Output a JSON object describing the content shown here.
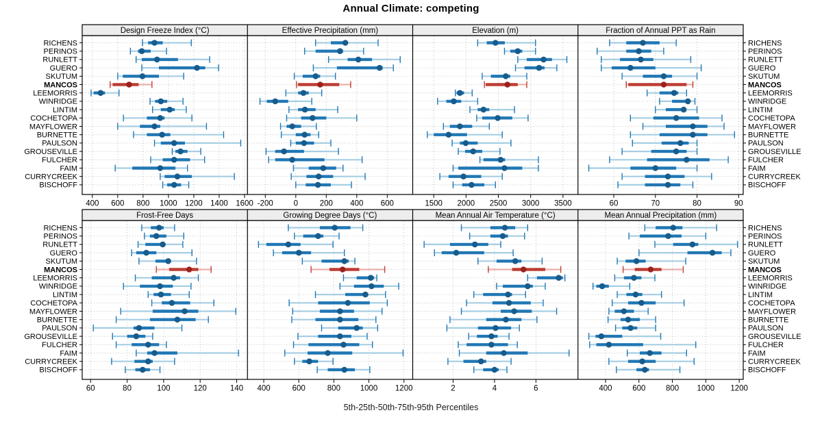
{
  "title": "Annual Climate: competing",
  "caption": "5th-25th-50th-75th-95th Percentiles",
  "stations": [
    "RICHENS",
    "PERINOS",
    "RUNLETT",
    "GUERO",
    "SKUTUM",
    "MANCOS",
    "LEEMORRIS",
    "WINRIDGE",
    "LINTIM",
    "COCHETOPA",
    "MAYFLOWER",
    "BURNETTE",
    "PAULSON",
    "GROUSEVILLE",
    "FULCHER",
    "FAIM",
    "CURRYCREEK",
    "BISCHOFF"
  ],
  "highlight_station": "MANCOS",
  "colors": {
    "blue_range": "#A6CEE3",
    "blue_main": "#2077B4",
    "blue_dot": "#175C8C",
    "red_range": "#E9AFA9",
    "red_main": "#BE3E35",
    "red_dot": "#9C221B",
    "grid": "#BFBFBF",
    "strip_bg": "#EDEDED",
    "border": "#000000"
  },
  "chart_data": {
    "type": "dotplot-percentile-panels",
    "percentiles": [
      "5th",
      "25th",
      "50th",
      "75th",
      "95th"
    ],
    "legend": "each row: 5th-95th thin range, 25th-75th thick bar, 50th dot",
    "panels": [
      {
        "title": "Design Freeze Index (°C)",
        "xlim": [
          320,
          1623
        ],
        "ticks": [
          400,
          600,
          800,
          1000,
          1200,
          1400,
          1600
        ],
        "values": [
          [
            795,
            840,
            890,
            955,
            1180
          ],
          [
            700,
            760,
            790,
            860,
            985
          ],
          [
            745,
            790,
            910,
            1075,
            1325
          ],
          [
            790,
            925,
            1225,
            1290,
            1395
          ],
          [
            600,
            640,
            795,
            925,
            1120
          ],
          [
            540,
            560,
            690,
            765,
            870
          ],
          [
            390,
            410,
            465,
            500,
            610
          ],
          [
            855,
            895,
            940,
            990,
            1115
          ],
          [
            875,
            940,
            1010,
            1050,
            1140
          ],
          [
            645,
            830,
            935,
            970,
            1185
          ],
          [
            600,
            775,
            890,
            935,
            1300
          ],
          [
            725,
            830,
            950,
            1015,
            1435
          ],
          [
            890,
            940,
            1045,
            1130,
            1570
          ],
          [
            1030,
            1055,
            1095,
            1150,
            1255
          ],
          [
            860,
            955,
            1045,
            1170,
            1285
          ],
          [
            580,
            715,
            935,
            1055,
            1150
          ],
          [
            935,
            970,
            1070,
            1185,
            1520
          ],
          [
            955,
            990,
            1045,
            1100,
            1160
          ]
        ]
      },
      {
        "title": "Effective Precipitation (mm)",
        "xlim": [
          -317,
          767
        ],
        "ticks": [
          -200,
          0,
          200,
          400,
          600
        ],
        "values": [
          [
            130,
            230,
            325,
            340,
            540
          ],
          [
            58,
            130,
            290,
            310,
            445
          ],
          [
            215,
            340,
            410,
            500,
            685
          ],
          [
            115,
            270,
            550,
            570,
            640
          ],
          [
            -10,
            45,
            130,
            160,
            260
          ],
          [
            5,
            15,
            160,
            285,
            360
          ],
          [
            -65,
            15,
            50,
            85,
            170
          ],
          [
            -235,
            -190,
            -135,
            -50,
            105
          ],
          [
            -45,
            15,
            60,
            130,
            275
          ],
          [
            -60,
            35,
            110,
            200,
            400
          ],
          [
            -100,
            -60,
            -23,
            35,
            135
          ],
          [
            -95,
            0,
            58,
            97,
            150
          ],
          [
            -33,
            0,
            54,
            120,
            230
          ],
          [
            -195,
            -135,
            -77,
            54,
            280
          ],
          [
            -178,
            -135,
            -23,
            188,
            435
          ],
          [
            -15,
            85,
            180,
            265,
            310
          ],
          [
            -30,
            70,
            150,
            245,
            455
          ],
          [
            0,
            65,
            145,
            230,
            365
          ]
        ]
      },
      {
        "title": "Elevation (m)",
        "xlim": [
          1175,
          3732
        ],
        "ticks": [
          1500,
          2000,
          2500,
          3000,
          3500
        ],
        "values": [
          [
            2180,
            2320,
            2455,
            2600,
            3075
          ],
          [
            2595,
            2685,
            2800,
            2870,
            3075
          ],
          [
            2800,
            2940,
            3200,
            3330,
            3560
          ],
          [
            2765,
            2905,
            3130,
            3215,
            3405
          ],
          [
            2250,
            2385,
            2615,
            2685,
            2940
          ],
          [
            2285,
            2305,
            2640,
            2800,
            2940
          ],
          [
            1835,
            1855,
            1905,
            1970,
            2095
          ],
          [
            1560,
            1695,
            1810,
            1925,
            2180
          ],
          [
            2060,
            2180,
            2270,
            2360,
            2750
          ],
          [
            2165,
            2250,
            2490,
            2715,
            2960
          ],
          [
            1650,
            1750,
            1905,
            2095,
            2360
          ],
          [
            1400,
            1500,
            1730,
            2015,
            2560
          ],
          [
            1785,
            1905,
            1995,
            2180,
            2695
          ],
          [
            1880,
            1985,
            2110,
            2250,
            2525
          ],
          [
            2215,
            2270,
            2535,
            2605,
            3120
          ],
          [
            1800,
            1880,
            2595,
            2870,
            3120
          ],
          [
            1595,
            1730,
            1960,
            2235,
            2560
          ],
          [
            1800,
            1940,
            2085,
            2283,
            2455
          ]
        ]
      },
      {
        "title": "Fraction of Annual PPT as Rain",
        "xlim": [
          51.4,
          91.1
        ],
        "ticks": [
          60,
          70,
          80,
          90
        ],
        "values": [
          [
            59,
            63,
            67,
            71,
            75
          ],
          [
            56,
            63,
            66,
            69,
            72
          ],
          [
            57,
            61.5,
            66.5,
            69.5,
            78.5
          ],
          [
            57,
            59.5,
            64,
            70,
            81
          ],
          [
            62,
            67,
            72,
            74,
            80
          ],
          [
            63,
            63.5,
            72,
            77.5,
            79
          ],
          [
            68,
            71,
            74.5,
            75.5,
            77.5
          ],
          [
            71,
            74,
            77.8,
            78.3,
            79.5
          ],
          [
            70,
            72.5,
            76.8,
            77.3,
            80
          ],
          [
            64,
            69.5,
            75,
            80.5,
            86
          ],
          [
            67,
            72.5,
            79,
            82.5,
            86.5
          ],
          [
            64,
            71,
            79,
            82.5,
            89
          ],
          [
            64.5,
            71.5,
            76,
            78,
            80
          ],
          [
            62,
            69,
            75,
            77.5,
            80
          ],
          [
            59,
            68,
            77.5,
            83,
            87.5
          ],
          [
            54,
            64,
            70,
            75,
            80
          ],
          [
            62,
            67.5,
            73,
            77,
            83.5
          ],
          [
            61,
            67.5,
            73,
            76,
            79
          ]
        ]
      },
      {
        "title": "Frost-Free Days",
        "xlim": [
          55.4,
          145.9
        ],
        "ticks": [
          60,
          80,
          100,
          120,
          140
        ],
        "values": [
          [
            88,
            93,
            97.5,
            100,
            106
          ],
          [
            89.5,
            92.5,
            96,
            101.5,
            111
          ],
          [
            86,
            90,
            99.5,
            101,
            110.5
          ],
          [
            82.5,
            85,
            90.5,
            96,
            115.5
          ],
          [
            86.5,
            95.5,
            102.5,
            104,
            118
          ],
          [
            96,
            103,
            114,
            119,
            126
          ],
          [
            84.5,
            93.5,
            105.5,
            109,
            119
          ],
          [
            78,
            87,
            98,
            105,
            115
          ],
          [
            91.5,
            94.5,
            98.5,
            104,
            114
          ],
          [
            93.5,
            99,
            104.5,
            114.5,
            127.5
          ],
          [
            76.5,
            94,
            111.5,
            119,
            139.5
          ],
          [
            74,
            92.5,
            107.5,
            117.5,
            124.5
          ],
          [
            61.5,
            83.5,
            86.5,
            95,
            110
          ],
          [
            72,
            80,
            85,
            90,
            94
          ],
          [
            74,
            82.5,
            91.5,
            97.5,
            101.5
          ],
          [
            85,
            91,
            95,
            107.5,
            141
          ],
          [
            71.5,
            84,
            91.5,
            94,
            106
          ],
          [
            79,
            84.5,
            88.5,
            92.5,
            98
          ]
        ]
      },
      {
        "title": "Growing Degree Days (°C)",
        "xlim": [
          307,
          1250
        ],
        "ticks": [
          400,
          600,
          800,
          1000,
          1200
        ],
        "values": [
          [
            540,
            720,
            805,
            895,
            965
          ],
          [
            575,
            625,
            710,
            740,
            830
          ],
          [
            370,
            415,
            540,
            610,
            795
          ],
          [
            455,
            505,
            600,
            670,
            860
          ],
          [
            620,
            730,
            860,
            885,
            920
          ],
          [
            670,
            775,
            850,
            945,
            1090
          ],
          [
            855,
            930,
            1010,
            1030,
            1045
          ],
          [
            835,
            915,
            1015,
            1085,
            1170
          ],
          [
            695,
            865,
            980,
            990,
            1095
          ],
          [
            545,
            710,
            880,
            1005,
            1105
          ],
          [
            565,
            720,
            835,
            915,
            1075
          ],
          [
            560,
            695,
            835,
            940,
            1040
          ],
          [
            730,
            825,
            930,
            965,
            1050
          ],
          [
            595,
            710,
            835,
            900,
            990
          ],
          [
            570,
            655,
            855,
            945,
            1020
          ],
          [
            520,
            650,
            765,
            905,
            1195
          ],
          [
            575,
            620,
            660,
            710,
            795
          ],
          [
            705,
            765,
            860,
            920,
            1005
          ]
        ]
      },
      {
        "title": "Mean Annual Air Temperature (°C)",
        "xlim": [
          0.05,
          8.03
        ],
        "ticks": [
          2,
          4,
          6
        ],
        "values": [
          [
            2.4,
            3.8,
            4.5,
            5.0,
            5.6
          ],
          [
            2.8,
            3.8,
            4.4,
            4.65,
            5.45
          ],
          [
            0.6,
            1.85,
            3.05,
            3.7,
            4.3
          ],
          [
            1.1,
            1.45,
            2.15,
            3.5,
            4.9
          ],
          [
            3.2,
            4.1,
            5.0,
            5.3,
            6.3
          ],
          [
            3.7,
            4.85,
            5.4,
            6.45,
            7.2
          ],
          [
            5.6,
            6.05,
            7.1,
            7.3,
            7.4
          ],
          [
            4.1,
            4.4,
            5.6,
            5.85,
            6.45
          ],
          [
            3.0,
            3.45,
            4.65,
            4.85,
            5.5
          ],
          [
            2.65,
            3.9,
            4.7,
            5.75,
            6.35
          ],
          [
            2.4,
            4.3,
            4.95,
            5.8,
            7.0
          ],
          [
            1.85,
            3.6,
            4.55,
            5.3,
            6.05
          ],
          [
            1.7,
            3.2,
            4.05,
            4.8,
            5.2
          ],
          [
            2.75,
            3.15,
            3.85,
            4.15,
            4.7
          ],
          [
            2.25,
            2.65,
            3.85,
            4.65,
            5.1
          ],
          [
            2.3,
            3.6,
            4.45,
            5.6,
            7.6
          ],
          [
            1.75,
            2.5,
            3.35,
            3.6,
            4.8
          ],
          [
            3.0,
            3.45,
            4.0,
            4.2,
            4.6
          ]
        ]
      },
      {
        "title": "Mean Annual Precipitation (mm)",
        "xlim": [
          235,
          1224
        ],
        "ticks": [
          400,
          600,
          800,
          1000,
          1200
        ],
        "values": [
          [
            635,
            700,
            805,
            860,
            1065
          ],
          [
            540,
            605,
            775,
            855,
            1000
          ],
          [
            695,
            805,
            920,
            955,
            1190
          ],
          [
            600,
            890,
            1040,
            1095,
            1150
          ],
          [
            470,
            520,
            585,
            640,
            880
          ],
          [
            505,
            575,
            670,
            735,
            865
          ],
          [
            455,
            510,
            570,
            615,
            695
          ],
          [
            325,
            345,
            380,
            420,
            545
          ],
          [
            470,
            525,
            580,
            620,
            735
          ],
          [
            440,
            535,
            615,
            700,
            870
          ],
          [
            420,
            455,
            510,
            570,
            655
          ],
          [
            415,
            490,
            535,
            605,
            700
          ],
          [
            460,
            500,
            550,
            590,
            700
          ],
          [
            300,
            340,
            375,
            500,
            730
          ],
          [
            305,
            345,
            420,
            625,
            940
          ],
          [
            530,
            605,
            665,
            735,
            885
          ],
          [
            420,
            535,
            620,
            700,
            930
          ],
          [
            465,
            585,
            635,
            660,
            845
          ]
        ]
      }
    ]
  }
}
